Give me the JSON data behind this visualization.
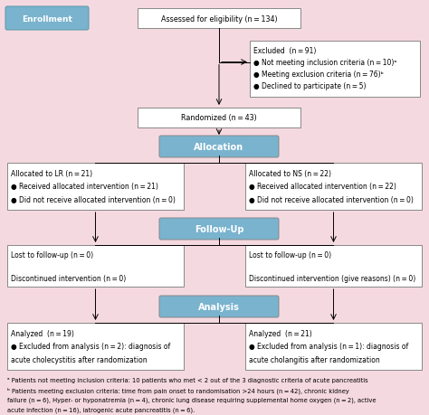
{
  "bg_color": "#f5d9e0",
  "box_border_color": "#888888",
  "blue_box_color": "#7ab3ce",
  "white_box_color": "#ffffff",
  "enrollment_label": "Enrollment",
  "eligibility_text": "Assessed for eligibility (n = 134)",
  "excluded_title": "Excluded  (n = 91)",
  "excluded_line1": "● Not meeting inclusion criteria (n = 10)ᵃ",
  "excluded_line2": "● Meeting exclusion criteria (n = 76)ᵇ",
  "excluded_line3": "● Declined to participate (n = 5)",
  "randomized_text": "Randomized (n = 43)",
  "allocation_text": "Allocation",
  "lr_line0": "Allocated to LR (n = 21)",
  "lr_line1": "● Received allocated intervention (n = 21)",
  "lr_line2": "● Did not receive allocated intervention (n = 0)",
  "ns_line0": "Allocated to NS (n = 22)",
  "ns_line1": "● Received allocated intervention (n = 22)",
  "ns_line2": "● Did not receive allocated intervention (n = 0)",
  "followup_text": "Follow-Up",
  "lr_fu_line0": "Lost to follow-up (n = 0)",
  "lr_fu_line1": "",
  "lr_fu_line2": "Discontinued intervention (n = 0)",
  "ns_fu_line0": "Lost to follow-up (n = 0)",
  "ns_fu_line1": "",
  "ns_fu_line2": "Discontinued intervention (give reasons) (n = 0)",
  "analysis_text": "Analysis",
  "lr_an_line0": "Analyzed  (n = 19)",
  "lr_an_line1": "● Excluded from analysis (n = 2): diagnosis of",
  "lr_an_line2": "acute cholecystitis after randomization",
  "ns_an_line0": "Analyzed  (n = 21)",
  "ns_an_line1": "● Excluded from analysis (n = 1): diagnosis of",
  "ns_an_line2": "acute cholangitis after randomization",
  "footnote_a": "ᵃ Patients not meeting inclusion criteria: 10 patients who met < 2 out of the 3 diagnostic criteria of acute pancreatitis",
  "footnote_b": "ᵇ Patients meeting exclusion criteria: time from pain onset to randomisation >24 hours (n = 42), chronic kidney",
  "footnote_c": "failure (n = 6), Hyper- or hyponatremia (n = 4), chronic lung disease requiring supplemental home oxygen (n = 2), active",
  "footnote_d": "acute infection (n = 16), iatrogenic acute pancreatitis (n = 6).",
  "fs": 5.8,
  "fs_blue": 7.0,
  "fs_enroll": 6.5,
  "fs_footnote": 4.9
}
